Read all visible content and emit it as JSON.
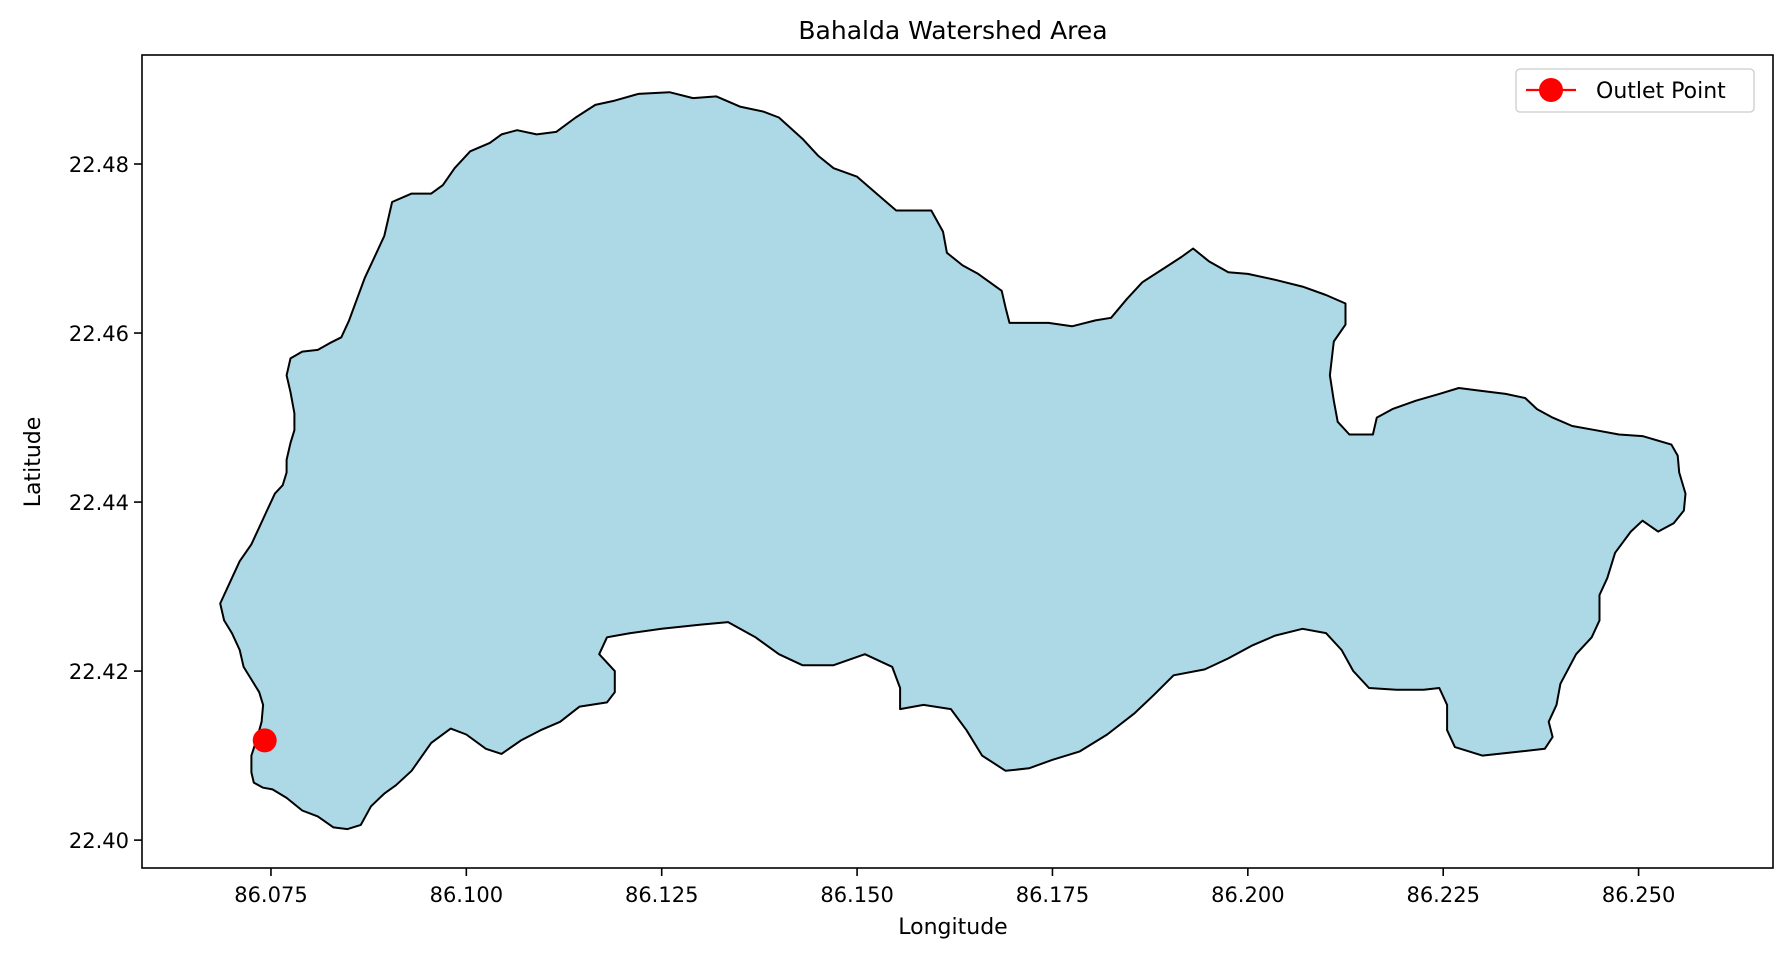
{
  "chart_data": {
    "type": "map",
    "title": "Bahalda Watershed Area",
    "xlabel": "Longitude",
    "ylabel": "Latitude",
    "xlim": [
      86.0585,
      86.2672
    ],
    "ylim": [
      22.3967,
      22.4929
    ],
    "xticks": [
      86.075,
      86.1,
      86.125,
      86.15,
      86.175,
      86.2,
      86.225,
      86.25
    ],
    "xtick_labels": [
      "86.075",
      "86.100",
      "86.125",
      "86.150",
      "86.175",
      "86.200",
      "86.225",
      "86.250"
    ],
    "yticks": [
      22.4,
      22.42,
      22.44,
      22.46,
      22.48
    ],
    "ytick_labels": [
      "22.40",
      "22.42",
      "22.44",
      "22.46",
      "22.48"
    ],
    "grid": false,
    "legend": {
      "placement": "top-right",
      "entries": [
        {
          "label": "Outlet Point",
          "marker": "circle",
          "color": "#ff0000"
        }
      ]
    },
    "watershed": {
      "fill": "#add8e6",
      "edge": "#000000",
      "boundary": [
        [
          86.0728,
          22.4068
        ],
        [
          86.074,
          22.4062
        ],
        [
          86.0752,
          22.406
        ],
        [
          86.077,
          22.405
        ],
        [
          86.079,
          22.4035
        ],
        [
          86.081,
          22.4028
        ],
        [
          86.083,
          22.4015
        ],
        [
          86.0848,
          22.4013
        ],
        [
          86.0865,
          22.4018
        ],
        [
          86.0878,
          22.404
        ],
        [
          86.0895,
          22.4055
        ],
        [
          86.091,
          22.4065
        ],
        [
          86.093,
          22.4082
        ],
        [
          86.0955,
          22.4115
        ],
        [
          86.098,
          22.4132
        ],
        [
          86.1,
          22.4125
        ],
        [
          86.1025,
          22.4108
        ],
        [
          86.1045,
          22.4102
        ],
        [
          86.107,
          22.4118
        ],
        [
          86.1095,
          22.413
        ],
        [
          86.112,
          22.414
        ],
        [
          86.1145,
          22.4158
        ],
        [
          86.118,
          22.4163
        ],
        [
          86.119,
          22.4175
        ],
        [
          86.119,
          22.42
        ],
        [
          86.117,
          22.422
        ],
        [
          86.118,
          22.424
        ],
        [
          86.121,
          22.4245
        ],
        [
          86.125,
          22.425
        ],
        [
          86.13,
          22.4255
        ],
        [
          86.1335,
          22.4258
        ],
        [
          86.137,
          22.424
        ],
        [
          86.14,
          22.422
        ],
        [
          86.143,
          22.4207
        ],
        [
          86.147,
          22.4207
        ],
        [
          86.151,
          22.422
        ],
        [
          86.1545,
          22.4205
        ],
        [
          86.1555,
          22.418
        ],
        [
          86.1555,
          22.4155
        ],
        [
          86.1585,
          22.416
        ],
        [
          86.162,
          22.4155
        ],
        [
          86.164,
          22.413
        ],
        [
          86.166,
          22.41
        ],
        [
          86.169,
          22.4082
        ],
        [
          86.172,
          22.4085
        ],
        [
          86.175,
          22.4095
        ],
        [
          86.1785,
          22.4105
        ],
        [
          86.182,
          22.4125
        ],
        [
          86.1855,
          22.415
        ],
        [
          86.188,
          22.4172
        ],
        [
          86.1905,
          22.4195
        ],
        [
          86.1945,
          22.4202
        ],
        [
          86.1975,
          22.4215
        ],
        [
          86.2005,
          22.423
        ],
        [
          86.2035,
          22.4242
        ],
        [
          86.207,
          22.425
        ],
        [
          86.21,
          22.4245
        ],
        [
          86.212,
          22.4225
        ],
        [
          86.2135,
          22.42
        ],
        [
          86.2155,
          22.418
        ],
        [
          86.219,
          22.4178
        ],
        [
          86.2225,
          22.4178
        ],
        [
          86.2245,
          22.418
        ],
        [
          86.2255,
          22.416
        ],
        [
          86.2255,
          22.413
        ],
        [
          86.2265,
          22.411
        ],
        [
          86.23,
          22.41
        ],
        [
          86.235,
          22.4105
        ],
        [
          86.238,
          22.4108
        ],
        [
          86.239,
          22.4122
        ],
        [
          86.2385,
          22.414
        ],
        [
          86.2395,
          22.416
        ],
        [
          86.24,
          22.4185
        ],
        [
          86.242,
          22.422
        ],
        [
          86.244,
          22.424
        ],
        [
          86.245,
          22.426
        ],
        [
          86.245,
          22.429
        ],
        [
          86.246,
          22.431
        ],
        [
          86.247,
          22.434
        ],
        [
          86.249,
          22.4365
        ],
        [
          86.2505,
          22.4378
        ],
        [
          86.2525,
          22.4365
        ],
        [
          86.2545,
          22.4375
        ],
        [
          86.2558,
          22.439
        ],
        [
          86.256,
          22.441
        ],
        [
          86.2552,
          22.4435
        ],
        [
          86.255,
          22.4455
        ],
        [
          86.2542,
          22.4468
        ],
        [
          86.2505,
          22.4478
        ],
        [
          86.2475,
          22.448
        ],
        [
          86.2445,
          22.4485
        ],
        [
          86.2415,
          22.449
        ],
        [
          86.239,
          22.45
        ],
        [
          86.237,
          22.451
        ],
        [
          86.2355,
          22.4523
        ],
        [
          86.233,
          22.4528
        ],
        [
          86.2295,
          22.4532
        ],
        [
          86.227,
          22.4535
        ],
        [
          86.2245,
          22.4528
        ],
        [
          86.2215,
          22.452
        ],
        [
          86.2185,
          22.451
        ],
        [
          86.2165,
          22.45
        ],
        [
          86.216,
          22.448
        ],
        [
          86.213,
          22.448
        ],
        [
          86.2115,
          22.4495
        ],
        [
          86.211,
          22.452
        ],
        [
          86.2105,
          22.455
        ],
        [
          86.211,
          22.459
        ],
        [
          86.2125,
          22.461
        ],
        [
          86.2125,
          22.4635
        ],
        [
          86.21,
          22.4645
        ],
        [
          86.207,
          22.4655
        ],
        [
          86.2035,
          22.4663
        ],
        [
          86.2,
          22.467
        ],
        [
          86.1975,
          22.4672
        ],
        [
          86.195,
          22.4685
        ],
        [
          86.193,
          22.47
        ],
        [
          86.1915,
          22.469
        ],
        [
          86.1895,
          22.4678
        ],
        [
          86.1865,
          22.466
        ],
        [
          86.1845,
          22.464
        ],
        [
          86.1825,
          22.4618
        ],
        [
          86.1805,
          22.4615
        ],
        [
          86.1775,
          22.4608
        ],
        [
          86.1745,
          22.4612
        ],
        [
          86.1715,
          22.4612
        ],
        [
          86.1695,
          22.4612
        ],
        [
          86.169,
          22.463
        ],
        [
          86.1685,
          22.465
        ],
        [
          86.167,
          22.466
        ],
        [
          86.1655,
          22.467
        ],
        [
          86.1635,
          22.468
        ],
        [
          86.1615,
          22.4695
        ],
        [
          86.161,
          22.472
        ],
        [
          86.1595,
          22.4745
        ],
        [
          86.1575,
          22.4745
        ],
        [
          86.155,
          22.4745
        ],
        [
          86.1525,
          22.4765
        ],
        [
          86.15,
          22.4785
        ],
        [
          86.147,
          22.4795
        ],
        [
          86.145,
          22.481
        ],
        [
          86.143,
          22.483
        ],
        [
          86.14,
          22.4855
        ],
        [
          86.138,
          22.4862
        ],
        [
          86.135,
          22.4868
        ],
        [
          86.132,
          22.488
        ],
        [
          86.129,
          22.4878
        ],
        [
          86.126,
          22.4885
        ],
        [
          86.122,
          22.4883
        ],
        [
          86.119,
          22.4875
        ],
        [
          86.1165,
          22.487
        ],
        [
          86.114,
          22.4855
        ],
        [
          86.1115,
          22.4838
        ],
        [
          86.109,
          22.4835
        ],
        [
          86.1065,
          22.484
        ],
        [
          86.1045,
          22.4835
        ],
        [
          86.103,
          22.4825
        ],
        [
          86.1005,
          22.4815
        ],
        [
          86.0985,
          22.4795
        ],
        [
          86.097,
          22.4775
        ],
        [
          86.0955,
          22.4765
        ],
        [
          86.093,
          22.4765
        ],
        [
          86.0905,
          22.4755
        ],
        [
          86.09,
          22.4735
        ],
        [
          86.0895,
          22.4715
        ],
        [
          86.0885,
          22.4695
        ],
        [
          86.087,
          22.4665
        ],
        [
          86.086,
          22.464
        ],
        [
          86.085,
          22.4615
        ],
        [
          86.084,
          22.4595
        ],
        [
          86.0825,
          22.4588
        ],
        [
          86.081,
          22.458
        ],
        [
          86.079,
          22.4578
        ],
        [
          86.0775,
          22.457
        ],
        [
          86.077,
          22.455
        ],
        [
          86.0775,
          22.453
        ],
        [
          86.078,
          22.4505
        ],
        [
          86.078,
          22.4485
        ],
        [
          86.0775,
          22.447
        ],
        [
          86.077,
          22.445
        ],
        [
          86.077,
          22.4435
        ],
        [
          86.0765,
          22.442
        ],
        [
          86.0755,
          22.441
        ],
        [
          86.0745,
          22.439
        ],
        [
          86.0735,
          22.437
        ],
        [
          86.0725,
          22.435
        ],
        [
          86.071,
          22.433
        ],
        [
          86.07,
          22.431
        ],
        [
          86.069,
          22.429
        ],
        [
          86.0685,
          22.428
        ],
        [
          86.069,
          22.426
        ],
        [
          86.07,
          22.4245
        ],
        [
          86.071,
          22.4225
        ],
        [
          86.0715,
          22.4205
        ],
        [
          86.0725,
          22.419
        ],
        [
          86.0735,
          22.4175
        ],
        [
          86.074,
          22.416
        ],
        [
          86.0738,
          22.414
        ],
        [
          86.0732,
          22.412
        ],
        [
          86.0725,
          22.41
        ],
        [
          86.0725,
          22.408
        ]
      ]
    },
    "outlet_point": {
      "label": "Outlet Point",
      "lon": 86.0742,
      "lat": 22.4118,
      "color": "#ff0000"
    }
  }
}
